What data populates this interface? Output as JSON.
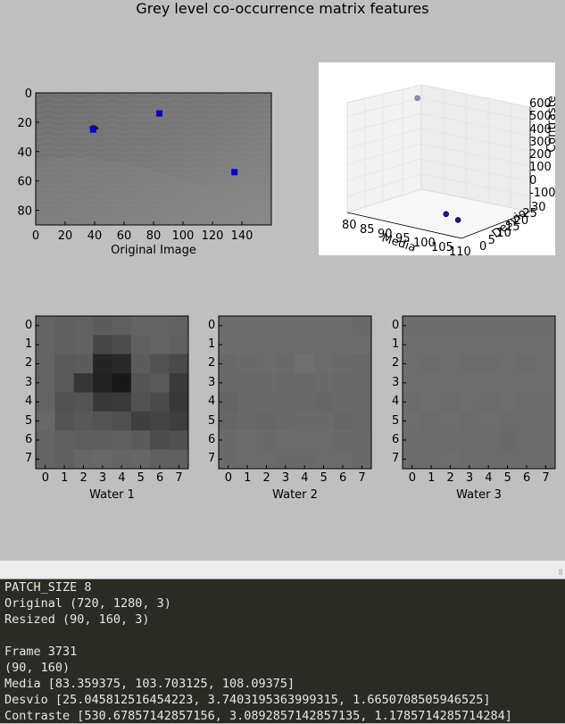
{
  "figure": {
    "title": "Grey level co-occurrence matrix features",
    "original": {
      "xlabel": "Original Image",
      "xticks": [
        "0",
        "20",
        "40",
        "60",
        "80",
        "100",
        "120",
        "140"
      ],
      "yticks": [
        "0",
        "20",
        "40",
        "60",
        "80"
      ],
      "markers": [
        {
          "x": 84,
          "y": 14
        },
        {
          "x": 39,
          "y": 25
        },
        {
          "x": 135,
          "y": 54
        }
      ],
      "marker_color": "#0000cc"
    },
    "plot3d": {
      "type": "scatter",
      "xlabel": "Media",
      "ylabel": "Desvio",
      "zlabel": "Contraste",
      "xticks": [
        "80",
        "85",
        "90",
        "95",
        "100",
        "105",
        "110"
      ],
      "yticks": [
        "0",
        "5",
        "10",
        "15",
        "20",
        "25",
        "30"
      ],
      "zticks": [
        "-100",
        "0",
        "100",
        "200",
        "300",
        "400",
        "500",
        "600"
      ]
    },
    "patches": [
      {
        "label": "Water 1",
        "ticks": [
          "0",
          "1",
          "2",
          "3",
          "4",
          "5",
          "6",
          "7"
        ],
        "grid": [
          [
            100,
            96,
            98,
            92,
            96,
            100,
            100,
            98
          ],
          [
            100,
            96,
            98,
            70,
            76,
            96,
            100,
            96
          ],
          [
            100,
            90,
            92,
            36,
            40,
            92,
            82,
            74
          ],
          [
            100,
            90,
            54,
            34,
            24,
            84,
            90,
            58
          ],
          [
            100,
            82,
            84,
            56,
            58,
            82,
            74,
            56
          ],
          [
            104,
            84,
            88,
            84,
            80,
            64,
            68,
            62
          ],
          [
            100,
            96,
            94,
            94,
            96,
            92,
            76,
            80
          ],
          [
            100,
            96,
            102,
            104,
            100,
            102,
            96,
            96
          ]
        ]
      },
      {
        "label": "Water 2",
        "ticks": [
          "0",
          "1",
          "2",
          "3",
          "4",
          "5",
          "6",
          "7"
        ],
        "grid": [
          [
            108,
            108,
            108,
            108,
            108,
            108,
            108,
            106
          ],
          [
            108,
            108,
            108,
            108,
            108,
            108,
            108,
            108
          ],
          [
            104,
            106,
            108,
            106,
            112,
            108,
            106,
            104
          ],
          [
            104,
            104,
            106,
            104,
            104,
            106,
            104,
            104
          ],
          [
            100,
            104,
            104,
            104,
            104,
            102,
            104,
            104
          ],
          [
            102,
            104,
            102,
            104,
            106,
            106,
            102,
            104
          ],
          [
            106,
            108,
            106,
            108,
            108,
            108,
            106,
            106
          ],
          [
            106,
            108,
            108,
            106,
            106,
            108,
            108,
            106
          ]
        ]
      },
      {
        "label": "Water 3",
        "ticks": [
          "0",
          "1",
          "2",
          "3",
          "4",
          "5",
          "6",
          "7"
        ],
        "grid": [
          [
            108,
            108,
            108,
            108,
            108,
            108,
            108,
            108
          ],
          [
            110,
            110,
            110,
            110,
            110,
            110,
            110,
            110
          ],
          [
            110,
            108,
            110,
            108,
            108,
            110,
            108,
            110
          ],
          [
            110,
            110,
            110,
            110,
            110,
            110,
            110,
            110
          ],
          [
            108,
            110,
            108,
            110,
            108,
            110,
            108,
            108
          ],
          [
            110,
            108,
            110,
            108,
            110,
            108,
            108,
            108
          ],
          [
            108,
            108,
            108,
            108,
            108,
            106,
            108,
            108
          ],
          [
            108,
            108,
            110,
            108,
            108,
            108,
            108,
            108
          ]
        ]
      }
    ]
  },
  "chart_data": {
    "type": "scatter",
    "title": "Grey level co-occurrence matrix features",
    "xlabel": "Media",
    "ylabel": "Desvio",
    "zlabel": "Contraste",
    "xlim": [
      80,
      110
    ],
    "ylim": [
      0,
      30
    ],
    "zlim": [
      -100,
      600
    ],
    "points": [
      {
        "x": 83.359375,
        "y": 25.045812516454223,
        "z": 530.6785714285716
      },
      {
        "x": 103.703125,
        "y": 3.7403195363999315,
        "z": 3.0892857142857135
      },
      {
        "x": 108.09375,
        "y": 1.6650708505946525,
        "z": 1.1785714285714284
      }
    ]
  },
  "console": {
    "lines": [
      "PATCH_SIZE 8",
      "Original (720, 1280, 3)",
      "Resized (90, 160, 3)",
      "",
      "Frame 3731",
      "(90, 160)",
      "Media [83.359375, 103.703125, 108.09375]",
      "Desvio [25.045812516454223, 3.7403195363999315, 1.6650708505946525]",
      "Contraste [530.67857142857156, 3.0892857142857135, 1.1785714285714284]"
    ]
  }
}
